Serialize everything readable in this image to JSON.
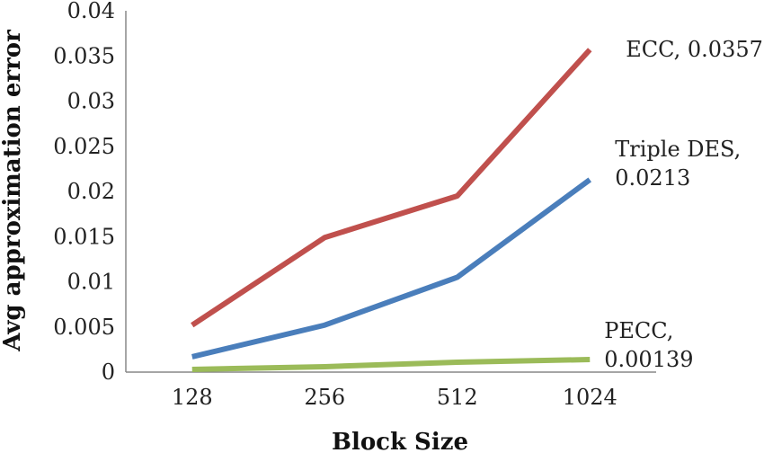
{
  "chart_data": {
    "type": "line",
    "title": "",
    "xlabel": "Block Size",
    "ylabel": "Avg approximation error",
    "categories": [
      "128",
      "256",
      "512",
      "1024"
    ],
    "ylim": [
      0,
      0.04
    ],
    "yticks": [
      "0",
      "0.005",
      "0.01",
      "0.015",
      "0.02",
      "0.025",
      "0.03",
      "0.035",
      "0.04"
    ],
    "grid": false,
    "legend": "none",
    "series": [
      {
        "name": "ECC",
        "color": "#c0504d",
        "values": [
          0.0052,
          0.0149,
          0.0195,
          0.0357
        ],
        "label_lines": [
          "ECC, 0.0357"
        ]
      },
      {
        "name": "Triple DES",
        "color": "#4a7ebb",
        "values": [
          0.0017,
          0.0052,
          0.0105,
          0.0213
        ],
        "label_lines": [
          "Triple DES,",
          "0.0213"
        ]
      },
      {
        "name": "PECC",
        "color": "#9bbb59",
        "values": [
          0.0003,
          0.0006,
          0.0011,
          0.00139
        ],
        "label_lines": [
          "PECC,",
          "0.00139"
        ]
      }
    ]
  }
}
